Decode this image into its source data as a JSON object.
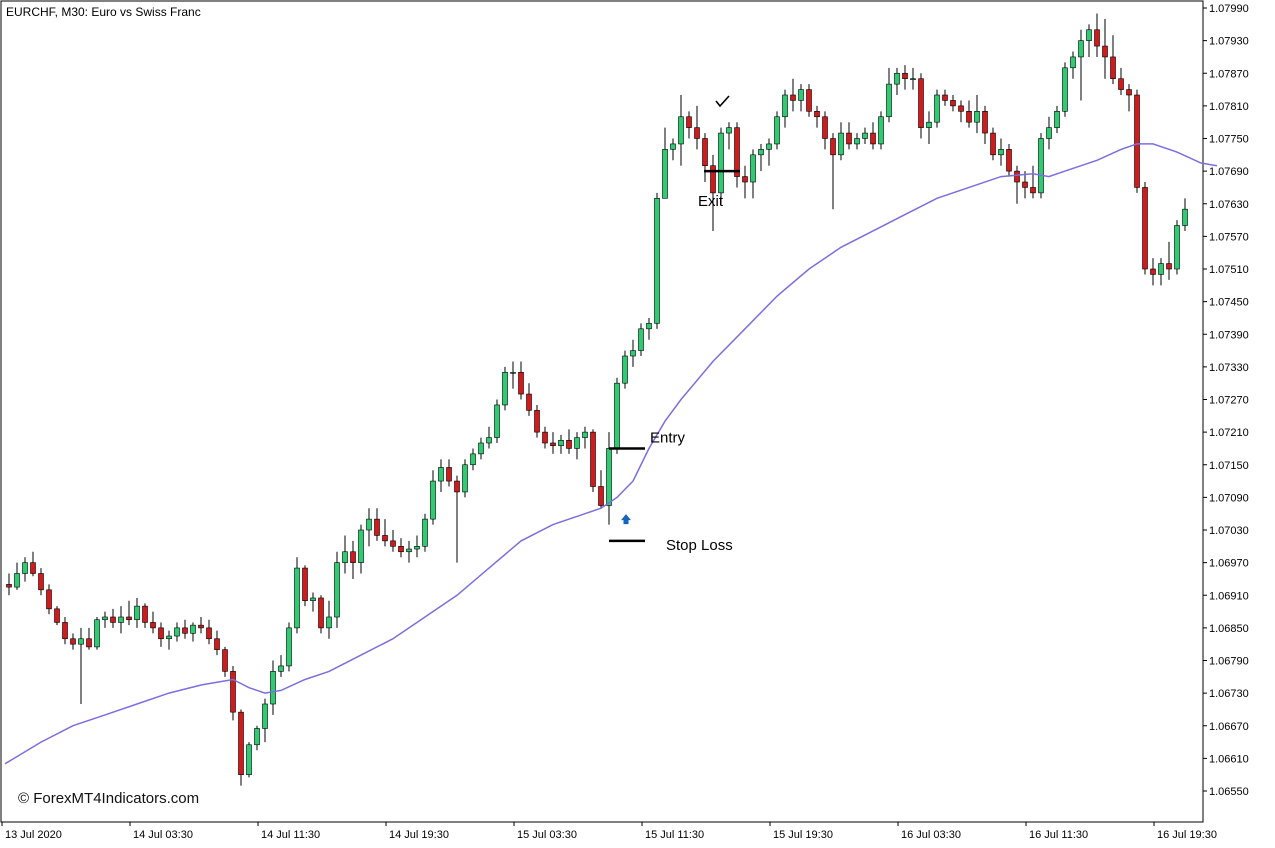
{
  "chart_data": {
    "type": "candlestick",
    "title": "EURCHF, M30:  Euro vs Swiss Franc",
    "watermark": "© ForexMT4Indicators.com",
    "y_ticks": [
      "1.07990",
      "1.07930",
      "1.07870",
      "1.07810",
      "1.07750",
      "1.07690",
      "1.07630",
      "1.07570",
      "1.07510",
      "1.07450",
      "1.07390",
      "1.07330",
      "1.07270",
      "1.07210",
      "1.07150",
      "1.07090",
      "1.07030",
      "1.06970",
      "1.06910",
      "1.06850",
      "1.06790",
      "1.06730",
      "1.06670",
      "1.06610",
      "1.06550"
    ],
    "ylim": [
      1.0652,
      1.08
    ],
    "x_tick_labels": [
      {
        "label": "13 Jul 2020",
        "bar": 0
      },
      {
        "label": "14 Jul 03:30",
        "bar": 16
      },
      {
        "label": "14 Jul 11:30",
        "bar": 32
      },
      {
        "label": "14 Jul 19:30",
        "bar": 48
      },
      {
        "label": "15 Jul 03:30",
        "bar": 64
      },
      {
        "label": "15 Jul 11:30",
        "bar": 80
      },
      {
        "label": "15 Jul 19:30",
        "bar": 96
      },
      {
        "label": "16 Jul 03:30",
        "bar": 112
      },
      {
        "label": "16 Jul 11:30",
        "bar": 128
      },
      {
        "label": "16 Jul 19:30",
        "bar": 144
      }
    ],
    "candles": [
      [
        1.0693,
        1.0695,
        1.0691,
        1.06925
      ],
      [
        1.06925,
        1.0697,
        1.0692,
        1.0695
      ],
      [
        1.0695,
        1.0698,
        1.06935,
        1.0697
      ],
      [
        1.0697,
        1.0699,
        1.06945,
        1.0695
      ],
      [
        1.0695,
        1.0696,
        1.0691,
        1.0692
      ],
      [
        1.0692,
        1.0693,
        1.06875,
        1.06885
      ],
      [
        1.06885,
        1.0689,
        1.06855,
        1.0686
      ],
      [
        1.0686,
        1.0687,
        1.0682,
        1.0683
      ],
      [
        1.0683,
        1.0684,
        1.0681,
        1.0682
      ],
      [
        1.0682,
        1.0685,
        1.0671,
        1.0683
      ],
      [
        1.0683,
        1.0685,
        1.0681,
        1.06815
      ],
      [
        1.06815,
        1.0687,
        1.0681,
        1.06865
      ],
      [
        1.06865,
        1.0688,
        1.0685,
        1.0687
      ],
      [
        1.0687,
        1.06885,
        1.0685,
        1.0686
      ],
      [
        1.0686,
        1.0689,
        1.0684,
        1.0687
      ],
      [
        1.0687,
        1.069,
        1.06855,
        1.06865
      ],
      [
        1.06865,
        1.06905,
        1.0685,
        1.0689
      ],
      [
        1.0689,
        1.06895,
        1.0685,
        1.0686
      ],
      [
        1.0686,
        1.0688,
        1.0684,
        1.0685
      ],
      [
        1.0685,
        1.0686,
        1.06815,
        1.0683
      ],
      [
        1.0683,
        1.06845,
        1.0681,
        1.06835
      ],
      [
        1.06835,
        1.0686,
        1.06825,
        1.0685
      ],
      [
        1.0685,
        1.06865,
        1.0683,
        1.0684
      ],
      [
        1.0684,
        1.0686,
        1.06825,
        1.06855
      ],
      [
        1.06855,
        1.0687,
        1.0684,
        1.0685
      ],
      [
        1.0685,
        1.06865,
        1.0682,
        1.0683
      ],
      [
        1.0683,
        1.06845,
        1.068,
        1.0681
      ],
      [
        1.0681,
        1.06815,
        1.0676,
        1.0677
      ],
      [
        1.0677,
        1.0678,
        1.0668,
        1.06695
      ],
      [
        1.06695,
        1.067,
        1.0656,
        1.0658
      ],
      [
        1.0658,
        1.0664,
        1.06575,
        1.06635
      ],
      [
        1.06635,
        1.0667,
        1.06625,
        1.06665
      ],
      [
        1.06665,
        1.0672,
        1.0664,
        1.0671
      ],
      [
        1.0671,
        1.0679,
        1.0669,
        1.0677
      ],
      [
        1.0677,
        1.068,
        1.0676,
        1.0678
      ],
      [
        1.0678,
        1.0686,
        1.0677,
        1.0685
      ],
      [
        1.0685,
        1.0698,
        1.0684,
        1.0696
      ],
      [
        1.0696,
        1.06965,
        1.0689,
        1.069
      ],
      [
        1.069,
        1.06915,
        1.0688,
        1.06905
      ],
      [
        1.06905,
        1.0691,
        1.0684,
        1.0685
      ],
      [
        1.0685,
        1.069,
        1.0683,
        1.0687
      ],
      [
        1.0687,
        1.0699,
        1.0685,
        1.0697
      ],
      [
        1.0697,
        1.0702,
        1.0695,
        1.0699
      ],
      [
        1.0699,
        1.0701,
        1.0694,
        1.0697
      ],
      [
        1.0697,
        1.0704,
        1.0695,
        1.0703
      ],
      [
        1.0703,
        1.0707,
        1.07,
        1.0705
      ],
      [
        1.0705,
        1.0707,
        1.0701,
        1.0702
      ],
      [
        1.0702,
        1.0705,
        1.07,
        1.0701
      ],
      [
        1.0701,
        1.0703,
        1.0699,
        1.07
      ],
      [
        1.07,
        1.07015,
        1.0698,
        1.0699
      ],
      [
        1.0699,
        1.0701,
        1.0697,
        1.06995
      ],
      [
        1.06995,
        1.0702,
        1.0698,
        1.07
      ],
      [
        1.07,
        1.0706,
        1.0699,
        1.0705
      ],
      [
        1.0705,
        1.0714,
        1.0704,
        1.0712
      ],
      [
        1.0712,
        1.0716,
        1.071,
        1.07145
      ],
      [
        1.07145,
        1.0716,
        1.0711,
        1.0712
      ],
      [
        1.0712,
        1.0713,
        1.0697,
        1.071
      ],
      [
        1.071,
        1.0716,
        1.0709,
        1.0715
      ],
      [
        1.0715,
        1.0718,
        1.0714,
        1.0717
      ],
      [
        1.0717,
        1.072,
        1.0716,
        1.0719
      ],
      [
        1.0719,
        1.0722,
        1.0718,
        1.072
      ],
      [
        1.072,
        1.0727,
        1.0719,
        1.0726
      ],
      [
        1.0726,
        1.0733,
        1.0725,
        1.0732
      ],
      [
        1.0732,
        1.0734,
        1.0729,
        1.0732
      ],
      [
        1.0732,
        1.0734,
        1.0727,
        1.0728
      ],
      [
        1.0728,
        1.073,
        1.0724,
        1.0725
      ],
      [
        1.0725,
        1.0726,
        1.072,
        1.0721
      ],
      [
        1.0721,
        1.0722,
        1.0718,
        1.0719
      ],
      [
        1.0719,
        1.0721,
        1.0717,
        1.07185
      ],
      [
        1.07185,
        1.07205,
        1.0717,
        1.07195
      ],
      [
        1.07195,
        1.07215,
        1.0717,
        1.0718
      ],
      [
        1.0718,
        1.0721,
        1.0716,
        1.072
      ],
      [
        1.072,
        1.0722,
        1.0718,
        1.0721
      ],
      [
        1.0721,
        1.07215,
        1.071,
        1.0711
      ],
      [
        1.0711,
        1.0714,
        1.0707,
        1.07075
      ],
      [
        1.07075,
        1.0721,
        1.0704,
        1.0718
      ],
      [
        1.0718,
        1.0731,
        1.0717,
        1.073
      ],
      [
        1.073,
        1.0736,
        1.0729,
        1.0735
      ],
      [
        1.0735,
        1.0738,
        1.0733,
        1.0736
      ],
      [
        1.0736,
        1.0741,
        1.0735,
        1.074
      ],
      [
        1.074,
        1.0742,
        1.0738,
        1.0741
      ],
      [
        1.0741,
        1.0765,
        1.074,
        1.0764
      ],
      [
        1.0764,
        1.0777,
        1.0764,
        1.0773
      ],
      [
        1.0773,
        1.0775,
        1.0771,
        1.0774
      ],
      [
        1.0774,
        1.0783,
        1.077,
        1.0779
      ],
      [
        1.0779,
        1.078,
        1.0775,
        1.0777
      ],
      [
        1.0777,
        1.0781,
        1.0773,
        1.0775
      ],
      [
        1.0775,
        1.0776,
        1.0767,
        1.077
      ],
      [
        1.077,
        1.0772,
        1.0758,
        1.0765
      ],
      [
        1.0765,
        1.0777,
        1.0763,
        1.0776
      ],
      [
        1.0776,
        1.0778,
        1.0773,
        1.0777
      ],
      [
        1.0777,
        1.0778,
        1.0766,
        1.0768
      ],
      [
        1.0768,
        1.077,
        1.0764,
        1.0767
      ],
      [
        1.0767,
        1.0773,
        1.0764,
        1.0772
      ],
      [
        1.0772,
        1.0774,
        1.0769,
        1.0773
      ],
      [
        1.0773,
        1.0775,
        1.077,
        1.0774
      ],
      [
        1.0774,
        1.078,
        1.0773,
        1.0779
      ],
      [
        1.0779,
        1.0784,
        1.0777,
        1.0783
      ],
      [
        1.0783,
        1.0786,
        1.078,
        1.0782
      ],
      [
        1.0782,
        1.0785,
        1.078,
        1.0784
      ],
      [
        1.0784,
        1.0785,
        1.0779,
        1.078
      ],
      [
        1.078,
        1.0781,
        1.0777,
        1.0779
      ],
      [
        1.0779,
        1.078,
        1.0773,
        1.0775
      ],
      [
        1.0775,
        1.0776,
        1.0762,
        1.0772
      ],
      [
        1.0772,
        1.0778,
        1.0771,
        1.0776
      ],
      [
        1.0776,
        1.0778,
        1.0773,
        1.0774
      ],
      [
        1.0774,
        1.0776,
        1.0773,
        1.0775
      ],
      [
        1.0775,
        1.0777,
        1.0774,
        1.0776
      ],
      [
        1.0776,
        1.0778,
        1.0773,
        1.0774
      ],
      [
        1.0774,
        1.078,
        1.0773,
        1.0779
      ],
      [
        1.0779,
        1.0788,
        1.0778,
        1.0785
      ],
      [
        1.0785,
        1.0788,
        1.0783,
        1.0787
      ],
      [
        1.0787,
        1.07885,
        1.0784,
        1.0786
      ],
      [
        1.0786,
        1.0788,
        1.0784,
        1.0786
      ],
      [
        1.0786,
        1.0787,
        1.0775,
        1.0777
      ],
      [
        1.0777,
        1.078,
        1.0774,
        1.0778
      ],
      [
        1.0778,
        1.0784,
        1.0777,
        1.0783
      ],
      [
        1.0783,
        1.0784,
        1.0781,
        1.0782
      ],
      [
        1.0782,
        1.0783,
        1.078,
        1.0781
      ],
      [
        1.0781,
        1.0782,
        1.0778,
        1.078
      ],
      [
        1.078,
        1.0782,
        1.0777,
        1.0778
      ],
      [
        1.0778,
        1.0783,
        1.0776,
        1.078
      ],
      [
        1.078,
        1.0781,
        1.0774,
        1.0776
      ],
      [
        1.0776,
        1.0777,
        1.0771,
        1.0772
      ],
      [
        1.0772,
        1.0775,
        1.077,
        1.0773
      ],
      [
        1.0773,
        1.0774,
        1.0768,
        1.0769
      ],
      [
        1.0769,
        1.077,
        1.0763,
        1.0767
      ],
      [
        1.0767,
        1.0769,
        1.0764,
        1.0766
      ],
      [
        1.0766,
        1.077,
        1.0764,
        1.0765
      ],
      [
        1.0765,
        1.0776,
        1.0764,
        1.0775
      ],
      [
        1.0775,
        1.0779,
        1.0773,
        1.0777
      ],
      [
        1.0777,
        1.0781,
        1.0776,
        1.078
      ],
      [
        1.078,
        1.0789,
        1.0779,
        1.0788
      ],
      [
        1.0788,
        1.0791,
        1.0786,
        1.079
      ],
      [
        1.079,
        1.0795,
        1.0782,
        1.0793
      ],
      [
        1.0793,
        1.0796,
        1.079,
        1.0795
      ],
      [
        1.0795,
        1.0798,
        1.079,
        1.0792
      ],
      [
        1.0792,
        1.0797,
        1.0786,
        1.079
      ],
      [
        1.079,
        1.0794,
        1.0785,
        1.0786
      ],
      [
        1.0786,
        1.0788,
        1.0783,
        1.0784
      ],
      [
        1.0784,
        1.0785,
        1.078,
        1.0783
      ],
      [
        1.0783,
        1.0784,
        1.0765,
        1.0766
      ],
      [
        1.0766,
        1.0767,
        1.075,
        1.0751
      ],
      [
        1.0751,
        1.0753,
        1.0748,
        1.075
      ],
      [
        1.075,
        1.0753,
        1.0748,
        1.0752
      ],
      [
        1.0752,
        1.0756,
        1.0749,
        1.0751
      ],
      [
        1.0751,
        1.076,
        1.075,
        1.0759
      ],
      [
        1.0759,
        1.0764,
        1.0758,
        1.0762
      ]
    ],
    "moving_average": {
      "color": "#7b6fe0",
      "points": [
        [
          -0.5,
          1.066
        ],
        [
          4,
          1.0664
        ],
        [
          8,
          1.0667
        ],
        [
          12,
          1.0669
        ],
        [
          16,
          1.0671
        ],
        [
          20,
          1.0673
        ],
        [
          24,
          1.06745
        ],
        [
          28,
          1.06755
        ],
        [
          30,
          1.0674
        ],
        [
          32,
          1.0673
        ],
        [
          34,
          1.06735
        ],
        [
          37,
          1.06755
        ],
        [
          40,
          1.0677
        ],
        [
          44,
          1.068
        ],
        [
          48,
          1.0683
        ],
        [
          52,
          1.0687
        ],
        [
          56,
          1.0691
        ],
        [
          60,
          1.0696
        ],
        [
          64,
          1.0701
        ],
        [
          68,
          1.0704
        ],
        [
          72,
          1.0706
        ],
        [
          74,
          1.0707
        ],
        [
          76,
          1.0709
        ],
        [
          78,
          1.0712
        ],
        [
          80,
          1.0718
        ],
        [
          82,
          1.0723
        ],
        [
          84,
          1.0727
        ],
        [
          88,
          1.0734
        ],
        [
          92,
          1.074
        ],
        [
          96,
          1.0746
        ],
        [
          100,
          1.0751
        ],
        [
          104,
          1.0755
        ],
        [
          108,
          1.0758
        ],
        [
          112,
          1.0761
        ],
        [
          116,
          1.0764
        ],
        [
          120,
          1.0766
        ],
        [
          124,
          1.0768
        ],
        [
          128,
          1.07685
        ],
        [
          130,
          1.0768
        ],
        [
          132,
          1.0769
        ],
        [
          136,
          1.0771
        ],
        [
          139,
          1.0773
        ],
        [
          141,
          1.0774
        ],
        [
          143,
          1.0774
        ],
        [
          146,
          1.07725
        ],
        [
          149,
          1.07705
        ],
        [
          151,
          1.077
        ]
      ]
    },
    "annotations": {
      "entry_label": "Entry",
      "exit_label": "Exit",
      "stop_loss_label": "Stop Loss",
      "entry_level": 1.0718,
      "exit_level": 1.0769,
      "stop_loss_level": 1.0701,
      "signal_arrow_level": 1.0705
    },
    "colors": {
      "bull": "#2ecc71",
      "bear": "#d11b1b",
      "wick": "#000000",
      "arrow": "#1565c0"
    },
    "grid": false
  }
}
